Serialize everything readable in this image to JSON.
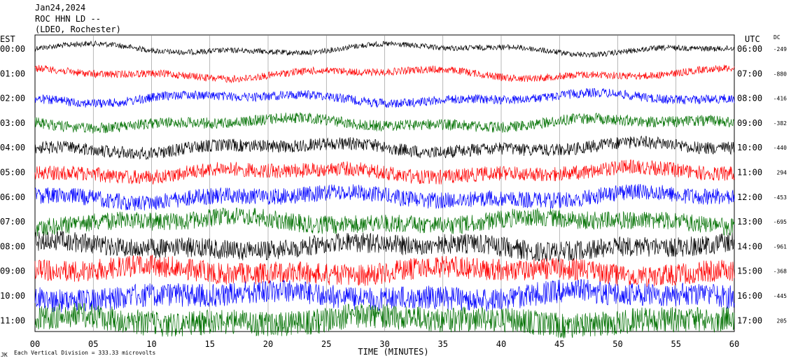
{
  "header": {
    "line1": "Jan24,2024",
    "line2": "ROC HHN LD --",
    "line3": "(LDEO, Rochester)"
  },
  "left_label": "EST",
  "right_label": "UTC",
  "dc_label": "DC",
  "footer": {
    "note": "Each Vertical Division =  333.33 microvolts",
    "corner": "JK"
  },
  "colors": {
    "black": "#000000",
    "red": "#ff0000",
    "blue": "#0000ff",
    "green": "#007000"
  },
  "chart_data": {
    "type": "line",
    "xlabel": "TIME (MINUTES)",
    "xlim": [
      0,
      60
    ],
    "x_ticks": [
      "00",
      "05",
      "10",
      "15",
      "20",
      "25",
      "30",
      "35",
      "40",
      "45",
      "50",
      "55",
      "60"
    ],
    "rows": [
      {
        "est": "00:00",
        "utc": "06:00",
        "dc": "-249",
        "color": "black"
      },
      {
        "est": "01:00",
        "utc": "07:00",
        "dc": "-880",
        "color": "red"
      },
      {
        "est": "02:00",
        "utc": "08:00",
        "dc": "-416",
        "color": "blue"
      },
      {
        "est": "03:00",
        "utc": "09:00",
        "dc": "-382",
        "color": "green"
      },
      {
        "est": "04:00",
        "utc": "10:00",
        "dc": "-440",
        "color": "black"
      },
      {
        "est": "05:00",
        "utc": "11:00",
        "dc": "294",
        "color": "red"
      },
      {
        "est": "06:00",
        "utc": "12:00",
        "dc": "-453",
        "color": "blue"
      },
      {
        "est": "07:00",
        "utc": "13:00",
        "dc": "-695",
        "color": "green"
      },
      {
        "est": "08:00",
        "utc": "14:00",
        "dc": "-961",
        "color": "black"
      },
      {
        "est": "09:00",
        "utc": "15:00",
        "dc": "-368",
        "color": "red"
      },
      {
        "est": "10:00",
        "utc": "16:00",
        "dc": "-445",
        "color": "blue"
      },
      {
        "est": "11:00",
        "utc": "17:00",
        "dc": "205",
        "color": "green"
      }
    ]
  }
}
